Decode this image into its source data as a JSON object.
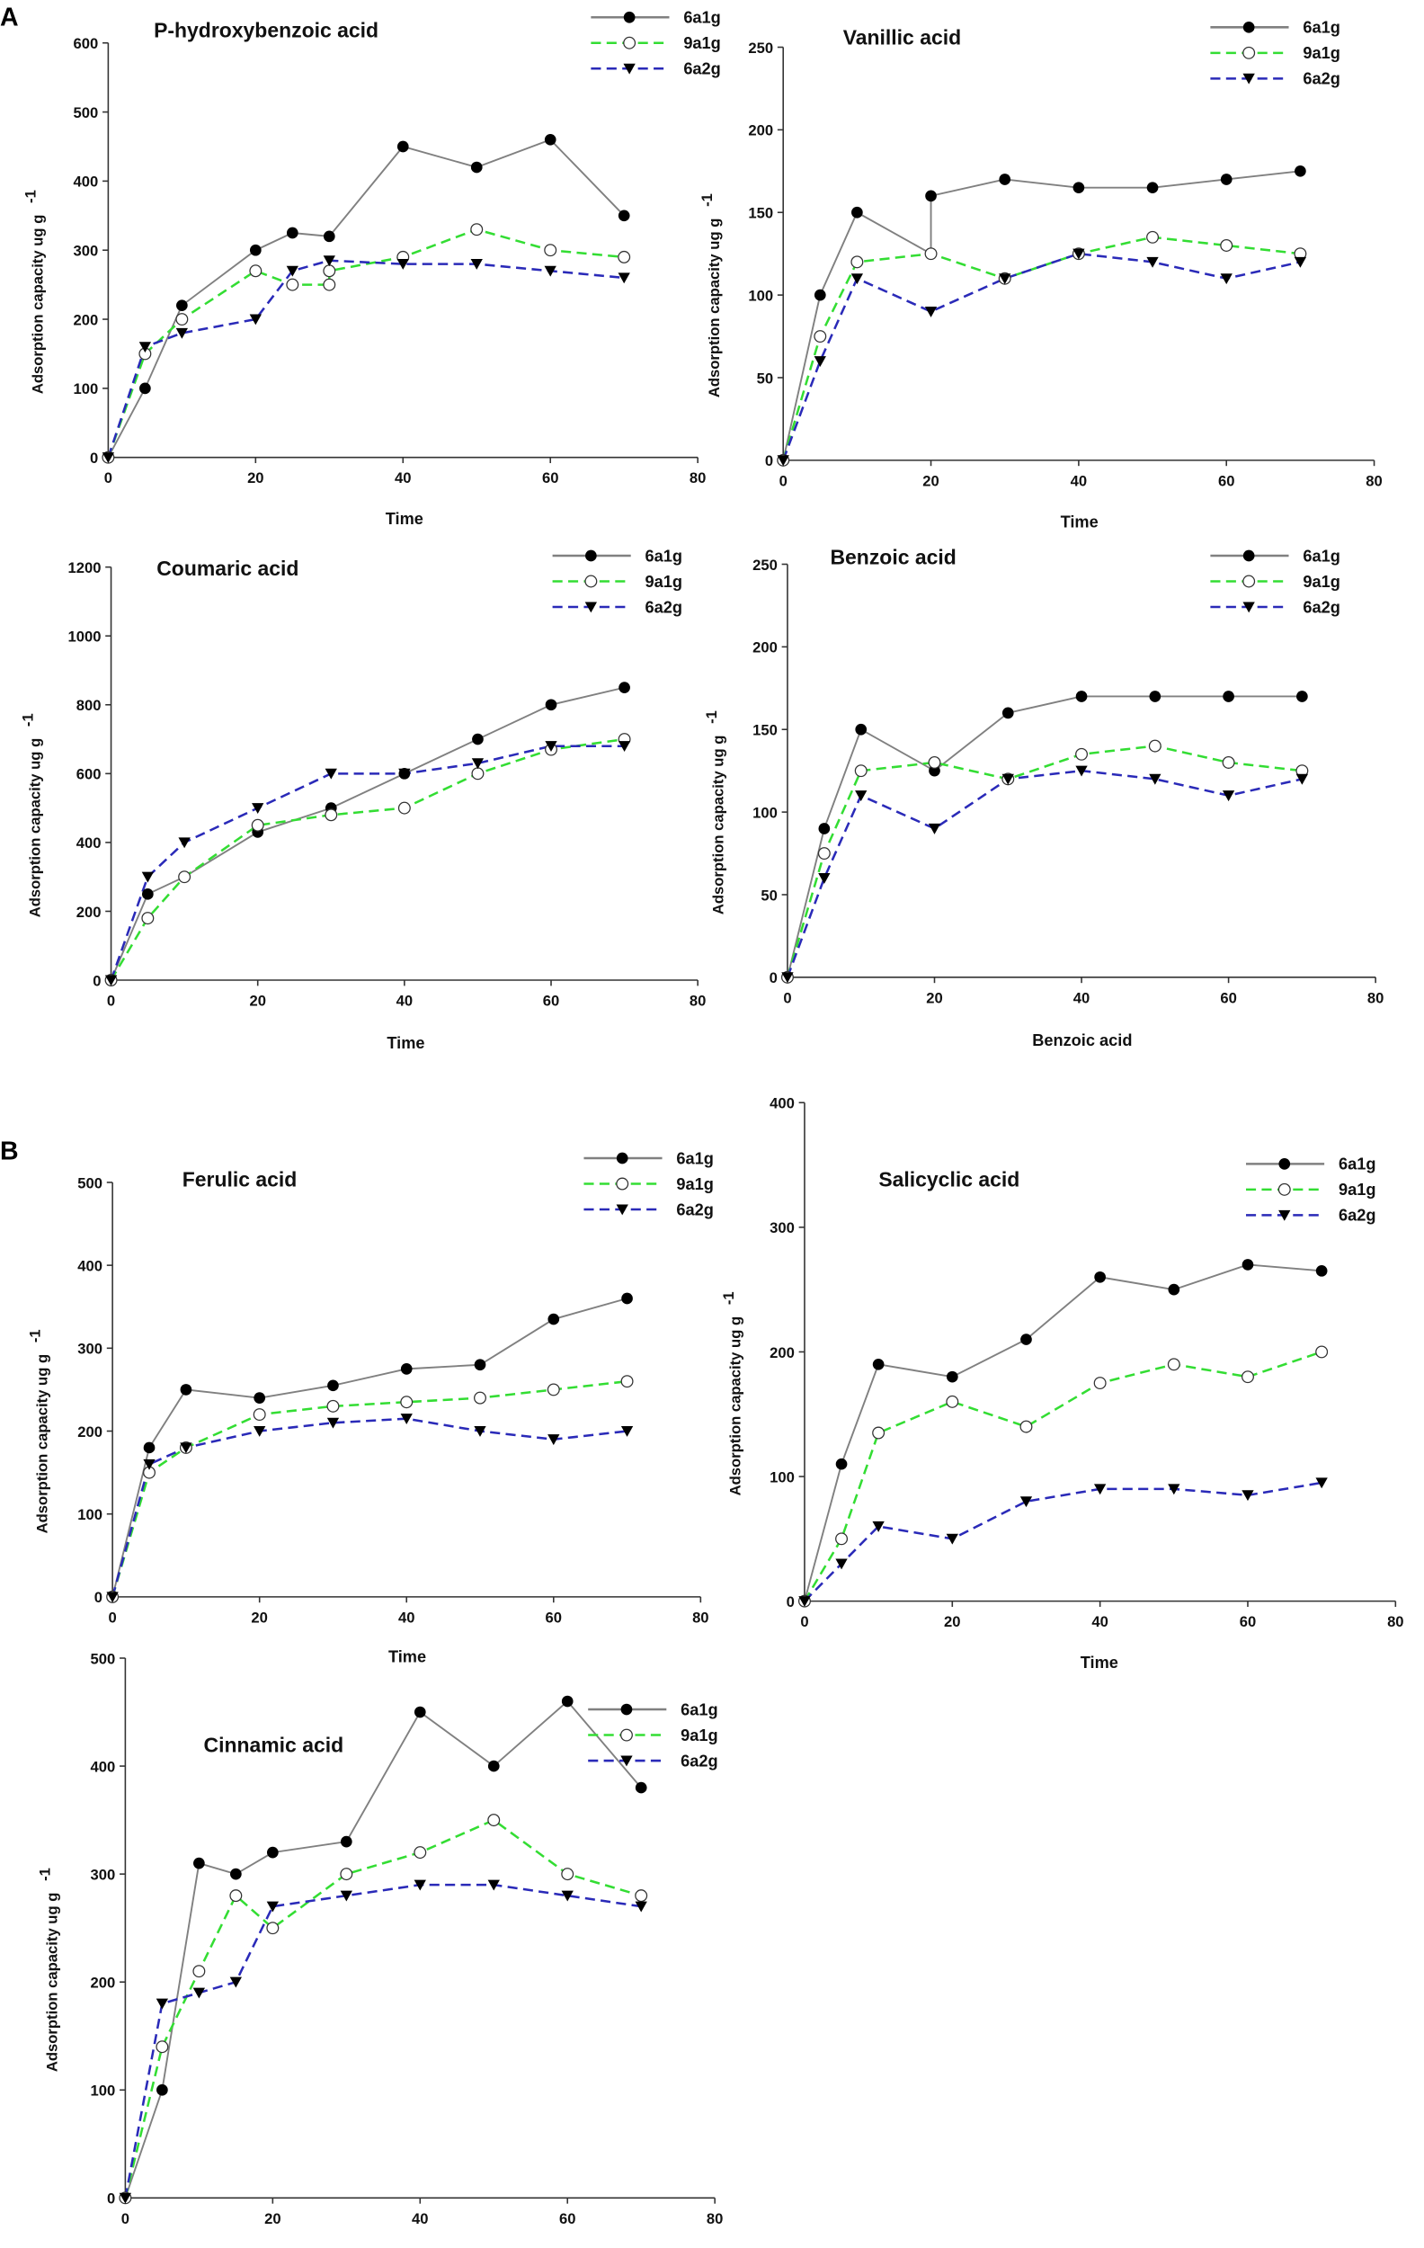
{
  "panel_labels": [
    "A",
    "B"
  ],
  "chart_data": [
    {
      "type": "line",
      "title": "P-hydroxybenzoic acid",
      "xlabel": "Time",
      "ylabel": "Adsorption capacity ug g",
      "ylabel_sup": "-1",
      "xlim": [
        0,
        80
      ],
      "ylim": [
        0,
        600
      ],
      "xticks": [
        0,
        20,
        40,
        60,
        80
      ],
      "yticks": [
        0,
        100,
        200,
        300,
        400,
        500,
        600
      ],
      "legend_position": "top-right",
      "series": [
        {
          "name": "6a1g",
          "x": [
            0,
            5,
            10,
            20,
            25,
            30,
            40,
            50,
            60,
            70
          ],
          "y": [
            0,
            100,
            220,
            300,
            325,
            320,
            450,
            420,
            460,
            350
          ]
        },
        {
          "name": "9a1g",
          "x": [
            0,
            5,
            10,
            20,
            25,
            30,
            30,
            40,
            50,
            60,
            70
          ],
          "y": [
            0,
            150,
            200,
            270,
            250,
            250,
            270,
            290,
            330,
            300,
            290
          ]
        },
        {
          "name": "6a2g",
          "x": [
            0,
            5,
            10,
            20,
            25,
            30,
            40,
            50,
            60,
            70
          ],
          "y": [
            0,
            160,
            180,
            200,
            270,
            285,
            280,
            280,
            270,
            260
          ]
        }
      ]
    },
    {
      "type": "line",
      "title": "Vanillic acid",
      "xlabel": "Time",
      "ylabel": "Adsorption capacity ug g",
      "ylabel_sup": "-1",
      "xlim": [
        0,
        80
      ],
      "ylim": [
        0,
        250
      ],
      "xticks": [
        0,
        20,
        40,
        60,
        80
      ],
      "yticks": [
        0,
        50,
        100,
        150,
        200,
        250
      ],
      "legend_position": "top-right",
      "series": [
        {
          "name": "6a1g",
          "x": [
            0,
            5,
            10,
            20,
            20,
            30,
            40,
            50,
            60,
            70
          ],
          "y": [
            0,
            100,
            150,
            125,
            160,
            170,
            165,
            165,
            170,
            175
          ]
        },
        {
          "name": "9a1g",
          "x": [
            0,
            5,
            10,
            20,
            30,
            40,
            50,
            60,
            70
          ],
          "y": [
            0,
            75,
            120,
            125,
            110,
            125,
            135,
            130,
            125
          ]
        },
        {
          "name": "6a2g",
          "x": [
            0,
            5,
            10,
            20,
            30,
            40,
            50,
            60,
            70
          ],
          "y": [
            0,
            60,
            110,
            90,
            110,
            125,
            120,
            110,
            120
          ]
        }
      ]
    },
    {
      "type": "line",
      "title": "Coumaric acid",
      "xlabel": "Time",
      "ylabel": "Adsorption capacity ug g",
      "ylabel_sup": "-1",
      "xlim": [
        0,
        80
      ],
      "ylim": [
        0,
        1200
      ],
      "xticks": [
        0,
        20,
        40,
        60,
        80
      ],
      "yticks": [
        0,
        200,
        400,
        600,
        800,
        1000,
        1200
      ],
      "legend_position": "top-right",
      "series": [
        {
          "name": "6a1g",
          "x": [
            0,
            5,
            10,
            20,
            30,
            40,
            50,
            60,
            70
          ],
          "y": [
            0,
            250,
            300,
            430,
            500,
            600,
            700,
            800,
            850
          ]
        },
        {
          "name": "9a1g",
          "x": [
            0,
            5,
            10,
            20,
            30,
            40,
            50,
            60,
            70
          ],
          "y": [
            0,
            180,
            300,
            450,
            480,
            500,
            600,
            670,
            700
          ]
        },
        {
          "name": "6a2g",
          "x": [
            0,
            5,
            10,
            20,
            30,
            40,
            50,
            60,
            70
          ],
          "y": [
            0,
            300,
            400,
            500,
            600,
            600,
            630,
            680,
            680
          ]
        }
      ]
    },
    {
      "type": "line",
      "title": "Benzoic acid",
      "xlabel": "Benzoic acid",
      "ylabel": "Adsorption capacity ug g",
      "ylabel_sup": "-1",
      "xlim": [
        0,
        80
      ],
      "ylim": [
        0,
        250
      ],
      "xticks": [
        0,
        20,
        40,
        60,
        80
      ],
      "yticks": [
        0,
        50,
        100,
        150,
        200,
        250
      ],
      "legend_position": "top-right",
      "series": [
        {
          "name": "6a1g",
          "x": [
            0,
            5,
            10,
            20,
            30,
            40,
            50,
            60,
            70
          ],
          "y": [
            0,
            90,
            150,
            125,
            160,
            170,
            170,
            170,
            170
          ]
        },
        {
          "name": "9a1g",
          "x": [
            0,
            5,
            10,
            20,
            30,
            40,
            50,
            60,
            70
          ],
          "y": [
            0,
            75,
            125,
            130,
            120,
            135,
            140,
            130,
            125
          ]
        },
        {
          "name": "6a2g",
          "x": [
            0,
            5,
            10,
            20,
            30,
            40,
            50,
            60,
            70
          ],
          "y": [
            0,
            60,
            110,
            90,
            120,
            125,
            120,
            110,
            120
          ]
        }
      ]
    },
    {
      "type": "line",
      "title": "Ferulic acid",
      "xlabel": "Time",
      "ylabel": "Adsorption capacity ug g",
      "ylabel_sup": "-1",
      "xlim": [
        0,
        80
      ],
      "ylim": [
        0,
        500
      ],
      "xticks": [
        0,
        20,
        40,
        60,
        80
      ],
      "yticks": [
        0,
        100,
        200,
        300,
        400,
        500
      ],
      "legend_position": "top-right",
      "series": [
        {
          "name": "6a1g",
          "x": [
            0,
            5,
            10,
            20,
            30,
            40,
            50,
            60,
            70
          ],
          "y": [
            0,
            180,
            250,
            240,
            255,
            275,
            280,
            335,
            360
          ]
        },
        {
          "name": "9a1g",
          "x": [
            0,
            5,
            10,
            20,
            30,
            40,
            50,
            60,
            70
          ],
          "y": [
            0,
            150,
            180,
            220,
            230,
            235,
            240,
            250,
            260
          ]
        },
        {
          "name": "6a2g",
          "x": [
            0,
            5,
            10,
            20,
            30,
            40,
            50,
            60,
            70
          ],
          "y": [
            0,
            160,
            180,
            200,
            210,
            215,
            200,
            190,
            200
          ]
        }
      ]
    },
    {
      "type": "line",
      "title": "Salicyclic acid",
      "xlabel": "Time",
      "ylabel": "Adsorption capacity ug g",
      "ylabel_sup": "-1",
      "xlim": [
        0,
        80
      ],
      "ylim": [
        0,
        400
      ],
      "xticks": [
        0,
        20,
        40,
        60,
        80
      ],
      "yticks": [
        0,
        100,
        200,
        300,
        400
      ],
      "legend_position": "top-right",
      "series": [
        {
          "name": "6a1g",
          "x": [
            0,
            5,
            10,
            20,
            30,
            40,
            50,
            60,
            70
          ],
          "y": [
            0,
            110,
            190,
            180,
            210,
            260,
            250,
            270,
            265
          ]
        },
        {
          "name": "9a1g",
          "x": [
            0,
            5,
            10,
            20,
            30,
            40,
            50,
            60,
            70
          ],
          "y": [
            0,
            50,
            135,
            160,
            140,
            175,
            190,
            180,
            200
          ]
        },
        {
          "name": "6a2g",
          "x": [
            0,
            5,
            10,
            20,
            30,
            40,
            50,
            60,
            70
          ],
          "y": [
            0,
            30,
            60,
            50,
            80,
            90,
            90,
            85,
            95
          ]
        }
      ]
    },
    {
      "type": "line",
      "title": "Cinnamic acid",
      "xlabel": "Time",
      "ylabel": "Adsorption capacity ug g",
      "ylabel_sup": "-1",
      "xlim": [
        0,
        80
      ],
      "ylim": [
        0,
        500
      ],
      "xticks": [
        0,
        20,
        40,
        60,
        80
      ],
      "yticks": [
        0,
        100,
        200,
        300,
        400,
        500
      ],
      "legend_position": "top-right",
      "series": [
        {
          "name": "6a1g",
          "x": [
            0,
            5,
            10,
            15,
            20,
            30,
            40,
            50,
            60,
            70
          ],
          "y": [
            0,
            100,
            310,
            300,
            320,
            330,
            450,
            400,
            460,
            380
          ]
        },
        {
          "name": "9a1g",
          "x": [
            0,
            5,
            10,
            15,
            20,
            30,
            40,
            50,
            60,
            70
          ],
          "y": [
            0,
            140,
            210,
            280,
            250,
            300,
            320,
            350,
            300,
            280
          ]
        },
        {
          "name": "6a2g",
          "x": [
            0,
            5,
            10,
            15,
            20,
            30,
            40,
            50,
            60,
            70
          ],
          "y": [
            0,
            180,
            190,
            200,
            270,
            280,
            290,
            290,
            280,
            270
          ]
        }
      ]
    }
  ],
  "series_styles": [
    {
      "line_color": "#808080",
      "marker": "filled-circle",
      "dash": "solid"
    },
    {
      "line_color": "#33dd33",
      "marker": "open-circle",
      "dash": "dashed"
    },
    {
      "line_color": "#2a2ab8",
      "marker": "down-triangle",
      "dash": "dashed"
    }
  ]
}
